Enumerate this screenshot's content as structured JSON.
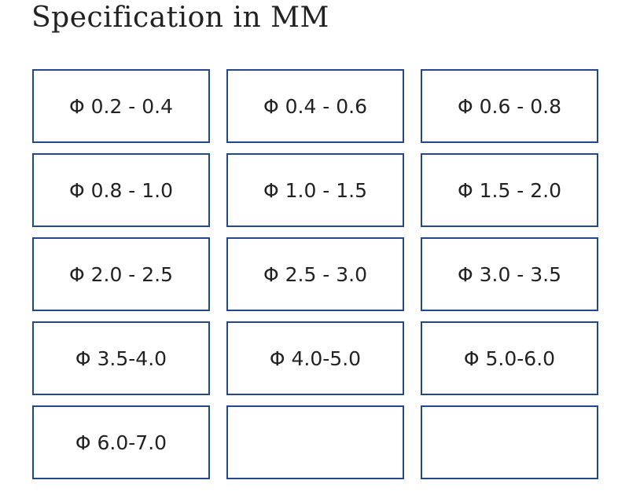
{
  "header": {
    "title": "Specification in MM"
  },
  "sizes": [
    "Φ 0.2 - 0.4",
    "Φ 0.4 - 0.6",
    "Φ 0.6 - 0.8",
    "Φ 0.8 - 1.0",
    "Φ 1.0 - 1.5",
    "Φ 1.5 - 2.0",
    "Φ 2.0 - 2.5",
    "Φ 2.5 - 3.0",
    "Φ 3.0 - 3.5",
    "Φ 3.5-4.0",
    "Φ 4.0-5.0",
    "Φ 5.0-6.0",
    "Φ 6.0-7.0"
  ]
}
